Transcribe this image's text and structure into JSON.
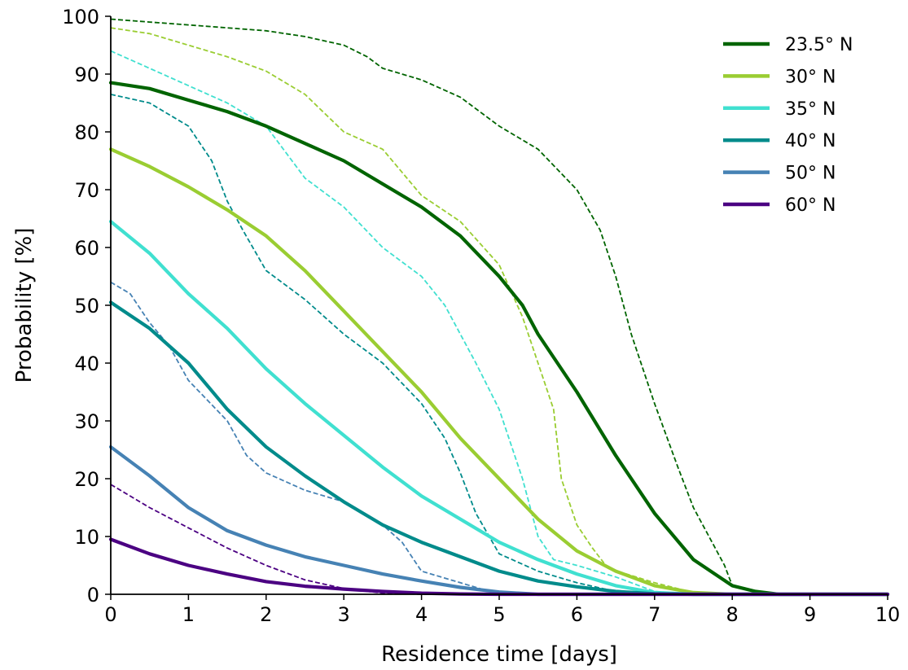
{
  "chart_data": {
    "type": "line",
    "title": "",
    "xlabel": "Residence time [days]",
    "ylabel": "Probability [%]",
    "xlim": [
      0,
      10
    ],
    "ylim": [
      0,
      100
    ],
    "xticks": [
      "0",
      "1",
      "2",
      "3",
      "4",
      "5",
      "6",
      "7",
      "8",
      "9",
      "10"
    ],
    "yticks": [
      "0",
      "10",
      "20",
      "30",
      "40",
      "50",
      "60",
      "70",
      "80",
      "90",
      "100"
    ],
    "grid": false,
    "legend_position": "top-right",
    "line_styles": {
      "solid": "model",
      "dashed": "observed"
    },
    "series": [
      {
        "name": "23.5° N",
        "color": "#006400",
        "solid": {
          "x": [
            0,
            0.5,
            1,
            1.5,
            2,
            2.5,
            3,
            3.5,
            4,
            4.5,
            5,
            5.3,
            5.5,
            6,
            6.5,
            7,
            7.5,
            8,
            8.3,
            8.6,
            9,
            10
          ],
          "y": [
            88.5,
            87.5,
            85.5,
            83.5,
            81,
            78,
            75,
            71,
            67,
            62,
            55,
            50,
            45,
            35,
            24,
            14,
            6,
            1.5,
            0.5,
            0,
            0,
            0
          ]
        },
        "dashed": {
          "x": [
            0,
            0.5,
            1,
            1.5,
            2,
            2.5,
            3,
            3.3,
            3.5,
            4,
            4.5,
            5,
            5.5,
            6,
            6.3,
            6.5,
            6.7,
            7,
            7.3,
            7.5,
            7.7,
            7.9,
            8,
            8.3,
            8.6,
            10
          ],
          "y": [
            99.5,
            99,
            98.5,
            98,
            97.5,
            96.5,
            95,
            93,
            91,
            89,
            86,
            81,
            77,
            70,
            63,
            55,
            45,
            33,
            22,
            15,
            10,
            5,
            1.5,
            0.5,
            0,
            0
          ]
        }
      },
      {
        "name": "30° N",
        "color": "#9acd32",
        "solid": {
          "x": [
            0,
            0.5,
            1,
            1.5,
            2,
            2.5,
            3,
            3.5,
            4,
            4.5,
            5,
            5.5,
            6,
            6.5,
            7,
            7.5,
            8,
            8.5,
            10
          ],
          "y": [
            77,
            74,
            70.5,
            66.5,
            62,
            56,
            49,
            42,
            35,
            27,
            20,
            13,
            7.5,
            4,
            1.5,
            0.3,
            0,
            0,
            0
          ]
        },
        "dashed": {
          "x": [
            0,
            0.5,
            1,
            1.5,
            2,
            2.5,
            3,
            3.5,
            4,
            4.5,
            5,
            5.3,
            5.5,
            5.7,
            5.8,
            6,
            6.2,
            6.4,
            7,
            7.5,
            8,
            8.5,
            10
          ],
          "y": [
            98,
            97,
            95,
            93,
            90.5,
            86.5,
            80,
            77,
            69,
            64.5,
            57,
            48,
            40,
            32,
            20,
            12,
            8,
            4.5,
            2,
            0.3,
            0,
            0,
            0
          ]
        }
      },
      {
        "name": "35° N",
        "color": "#40e0d0",
        "solid": {
          "x": [
            0,
            0.5,
            1,
            1.5,
            2,
            2.5,
            3,
            3.5,
            4,
            4.5,
            5,
            5.5,
            6,
            6.5,
            7,
            7.5,
            8,
            10
          ],
          "y": [
            64.5,
            59,
            52,
            46,
            39,
            33,
            27.5,
            22,
            17,
            13,
            9,
            6,
            3.5,
            1.5,
            0.3,
            0,
            0,
            0
          ]
        },
        "dashed": {
          "x": [
            0,
            0.5,
            1,
            1.5,
            2,
            2.5,
            3,
            3.5,
            4,
            4.3,
            4.5,
            4.7,
            5,
            5.3,
            5.5,
            5.7,
            6,
            6.5,
            7,
            7.5,
            10
          ],
          "y": [
            94,
            91,
            88,
            85,
            81,
            72,
            67,
            60,
            55,
            50,
            45,
            40,
            32,
            20,
            10,
            6,
            5,
            3,
            0.5,
            0,
            0
          ]
        }
      },
      {
        "name": "40° N",
        "color": "#008b8b",
        "solid": {
          "x": [
            0,
            0.5,
            1,
            1.5,
            2,
            2.5,
            3,
            3.5,
            4,
            4.5,
            5,
            5.5,
            6,
            6.5,
            7,
            7.5,
            10
          ],
          "y": [
            50.5,
            46,
            40,
            32,
            25.5,
            20.5,
            16,
            12,
            9,
            6.5,
            4,
            2.3,
            1.3,
            0.5,
            0.1,
            0,
            0
          ]
        },
        "dashed": {
          "x": [
            0,
            0.5,
            1,
            1.3,
            1.5,
            1.7,
            2,
            2.5,
            3,
            3.5,
            4,
            4.3,
            4.5,
            4.7,
            5,
            5.5,
            6,
            6.5,
            7,
            10
          ],
          "y": [
            86.5,
            85,
            81,
            75,
            68,
            63,
            56,
            51,
            45,
            40,
            33,
            27,
            21,
            14,
            7,
            4,
            2,
            0.5,
            0,
            0
          ]
        }
      },
      {
        "name": "50° N",
        "color": "#4682b4",
        "solid": {
          "x": [
            0,
            0.5,
            1,
            1.5,
            2,
            2.5,
            3,
            3.5,
            4,
            4.5,
            5,
            5.5,
            10
          ],
          "y": [
            25.5,
            20.5,
            15,
            11,
            8.5,
            6.5,
            5,
            3.5,
            2.3,
            1.2,
            0.4,
            0,
            0
          ]
        },
        "dashed": {
          "x": [
            0,
            0.25,
            0.5,
            0.75,
            1,
            1.5,
            1.75,
            2,
            2.5,
            3,
            3.5,
            3.75,
            4,
            4.5,
            5,
            10
          ],
          "y": [
            54,
            52,
            47,
            43,
            37,
            30,
            24,
            21,
            18,
            16,
            12,
            9,
            4,
            2,
            0,
            0
          ]
        }
      },
      {
        "name": "60° N",
        "color": "#4b0082",
        "solid": {
          "x": [
            0,
            0.5,
            1,
            1.5,
            2,
            2.5,
            3,
            3.5,
            4,
            4.5,
            5,
            10
          ],
          "y": [
            9.5,
            7,
            5,
            3.5,
            2.2,
            1.4,
            0.9,
            0.5,
            0.2,
            0.05,
            0,
            0
          ]
        },
        "dashed": {
          "x": [
            0,
            0.5,
            1,
            1.5,
            2,
            2.5,
            3,
            3.5,
            4,
            10
          ],
          "y": [
            19,
            15,
            11.5,
            8,
            5,
            2.5,
            1,
            0.2,
            0,
            0
          ]
        }
      }
    ]
  }
}
